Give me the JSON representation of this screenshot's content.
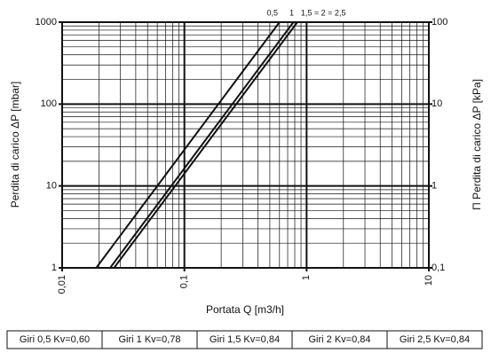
{
  "chart_data": {
    "type": "line",
    "x_label": "Portata Q [m3/h]",
    "y_label": "Perdita di carico ΔP [mbar]",
    "y2_label": "Π Perdita di carico ΔP [kPa]",
    "log_x": true,
    "log_y": true,
    "grid": true,
    "xlim": [
      0.01,
      10
    ],
    "ylim": [
      1,
      1000
    ],
    "y2lim": [
      0.1,
      100
    ],
    "xticks": [
      {
        "value": 0.01,
        "label": "0,01"
      },
      {
        "value": 0.1,
        "label": "0,1"
      },
      1,
      10
    ],
    "yticks": [
      1,
      10,
      100,
      1000
    ],
    "y2ticks": [
      {
        "value": 0.1,
        "label": "0,1"
      },
      1,
      10,
      100
    ],
    "x_minor_ticks": [
      0.02,
      0.03,
      0.04,
      0.05,
      0.06,
      0.07,
      0.08,
      0.09,
      0.2,
      0.3,
      0.4,
      0.5,
      0.6,
      0.7,
      0.8,
      0.9,
      2,
      3,
      4,
      5,
      6,
      7,
      8,
      9
    ],
    "y_minor_ticks": [
      2,
      3,
      4,
      5,
      6,
      7,
      8,
      9,
      20,
      30,
      40,
      50,
      60,
      70,
      80,
      90,
      200,
      300,
      400,
      500,
      600,
      700,
      800,
      900
    ],
    "series": [
      {
        "name": "0,5",
        "color": "#111111",
        "x": [
          0.019,
          0.6
        ],
        "values": [
          1,
          1000
        ]
      },
      {
        "name": "1",
        "color": "#111111",
        "x": [
          0.0247,
          0.78
        ],
        "values": [
          1,
          1000
        ]
      },
      {
        "name": "1,5 = 2 = 2,5",
        "color": "#111111",
        "x": [
          0.0266,
          0.84
        ],
        "values": [
          1,
          1000
        ]
      }
    ],
    "table": {
      "cells": [
        "Giri 0,5 Kv=0,60",
        "Giri 1 Kv=0,78",
        "Giri 1,5 Kv=0,84",
        "Giri 2 Kv=0,84",
        "Giri 2,5 Kv=0,84"
      ]
    }
  }
}
